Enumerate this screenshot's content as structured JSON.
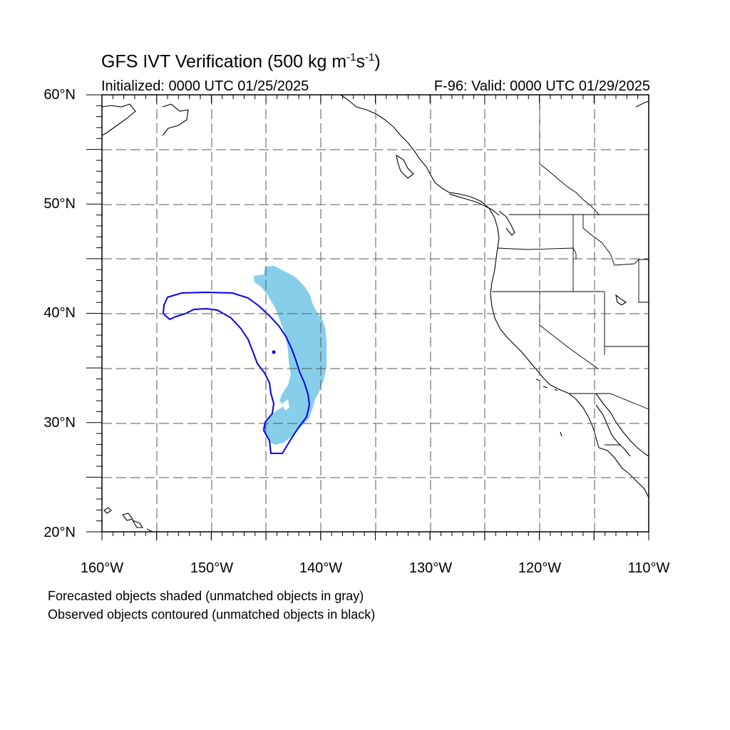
{
  "title": {
    "main_prefix": "GFS IVT Verification (500 kg m",
    "exp1": "-1",
    "mid": "s",
    "exp2": "-1",
    "suffix": ")"
  },
  "initialized": "Initialized: 0000 UTC 01/25/2025",
  "valid": "F-96: Valid: 0000 UTC 01/29/2025",
  "lat_labels": [
    "60°N",
    "50°N",
    "40°N",
    "30°N",
    "20°N"
  ],
  "lon_labels": [
    "160°W",
    "150°W",
    "140°W",
    "130°W",
    "120°W",
    "110°W"
  ],
  "footer": {
    "line1": "Forecasted objects shaded (unmatched objects in gray)",
    "line2": "Observed objects contoured (unmatched objects in black)"
  },
  "map": {
    "lat_range": [
      20,
      60
    ],
    "lon_range": [
      -160,
      -110
    ],
    "grid": "dashed every 5 degrees",
    "colors": {
      "forecast_fill": "#87ceeb",
      "observed_contour": "#0000ee",
      "coastline": "#000000",
      "grid": "#555555"
    }
  }
}
